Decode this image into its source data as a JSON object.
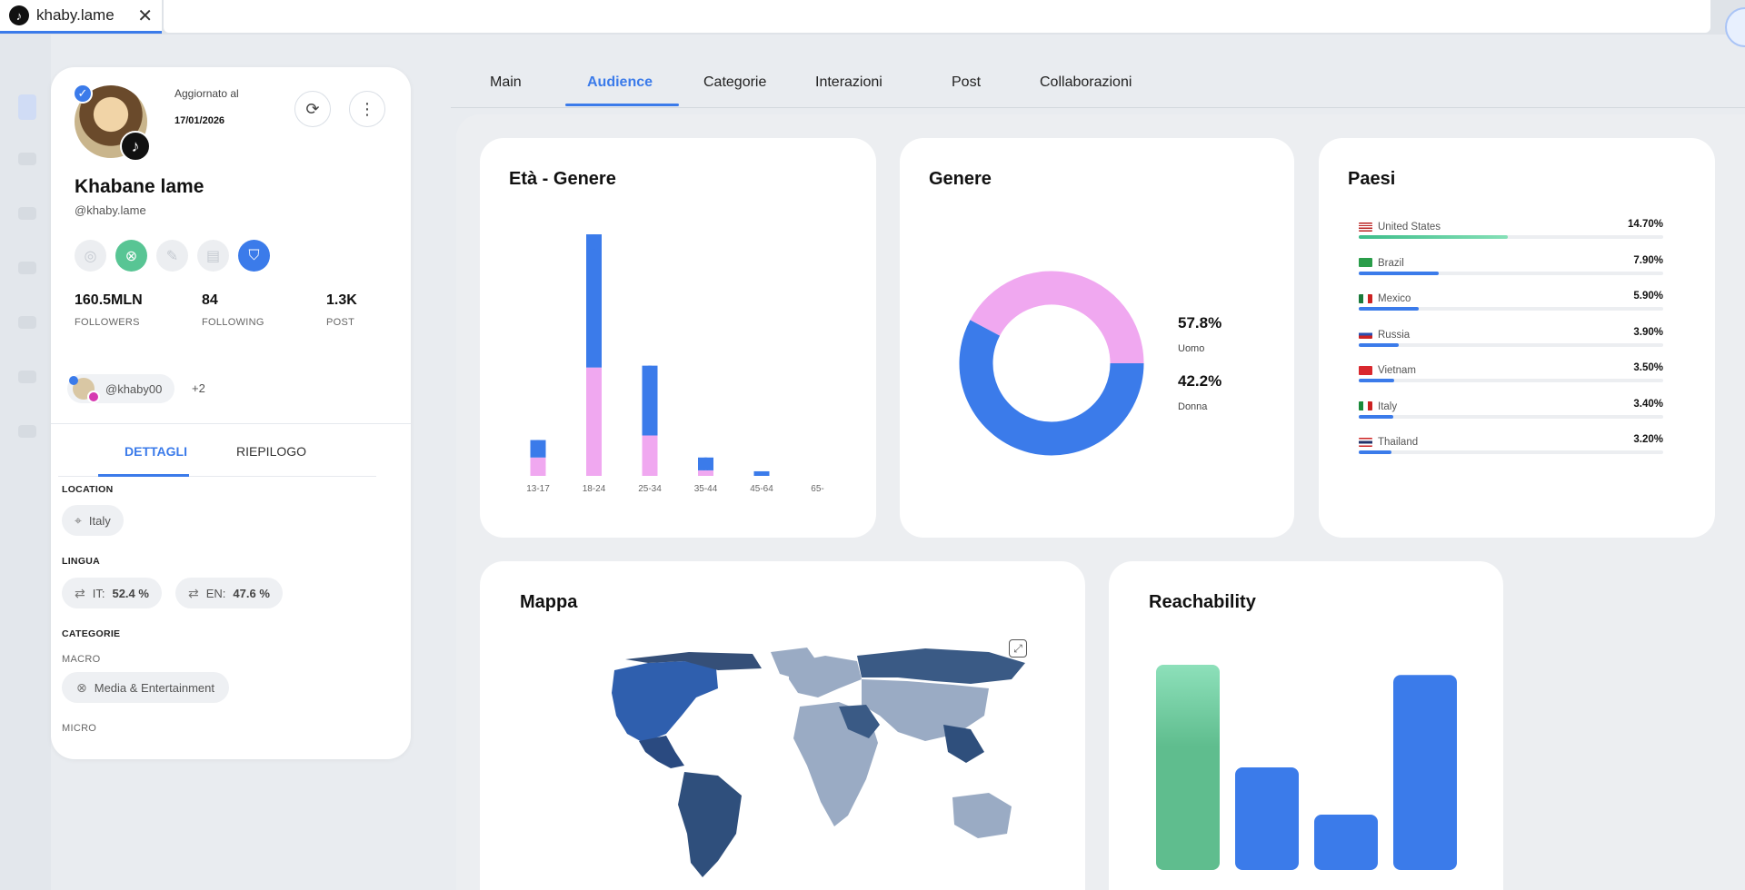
{
  "browser": {
    "tab_title": "khaby.lame",
    "favicon": "tiktok-icon",
    "close_icon": "close-icon"
  },
  "profile": {
    "updated_label": "Aggiornato al",
    "updated_date": "17/01/2026",
    "name": "Khabane lame",
    "handle": "@khaby.lame",
    "stats": [
      {
        "value": "160.5MLN",
        "label": "FOLLOWERS"
      },
      {
        "value": "84",
        "label": "FOLLOWING"
      },
      {
        "value": "1.3K",
        "label": "POST"
      }
    ],
    "linked_account": "@khaby00",
    "linked_more": "+2",
    "subtabs": [
      "DETTAGLI",
      "RIEPILOGO"
    ],
    "location_title": "LOCATION",
    "location_value": "Italy",
    "lingua_title": "LINGUA",
    "languages": [
      {
        "code": "IT:",
        "pct": "52.4 %"
      },
      {
        "code": "EN:",
        "pct": "47.6 %"
      }
    ],
    "categorie_title": "CATEGORIE",
    "macro_label": "MACRO",
    "macro_value": "Media & Entertainment",
    "micro_label": "MICRO"
  },
  "tabs": [
    "Main",
    "Audience",
    "Categorie",
    "Interazioni",
    "Post",
    "Collaborazioni"
  ],
  "active_tab": "Audience",
  "cards": {
    "eta_genere_title": "Età - Genere",
    "genere_title": "Genere",
    "paesi_title": "Paesi",
    "mappa_title": "Mappa",
    "reach_title": "Reachability"
  },
  "colors": {
    "male": "#3b7bea",
    "female": "#f0a8f0",
    "accent": "#3b7bea",
    "green": "#5fbd8e"
  },
  "chart_data": [
    {
      "type": "bar",
      "title": "Età - Genere",
      "categories": [
        "13-17",
        "18-24",
        "25-34",
        "35-44",
        "45-64",
        "65-"
      ],
      "series": [
        {
          "values": [
            1.9,
            14.5,
            7.6,
            1.4,
            0.5,
            0.0
          ]
        },
        {
          "values": [
            2.0,
            11.8,
            4.4,
            0.6,
            0.0,
            0.0
          ]
        }
      ]
    },
    {
      "type": "pie",
      "title": "Genere",
      "labels": [
        "Uomo",
        "Donna"
      ],
      "values": [
        57.8,
        42.2
      ],
      "display": [
        "57.8%",
        "42.2%"
      ]
    },
    {
      "type": "bar",
      "title": "Paesi",
      "categories": [
        "United States",
        "Brazil",
        "Mexico",
        "Russia",
        "Vietnam",
        "Italy",
        "Thailand"
      ],
      "values": [
        14.7,
        7.9,
        5.9,
        3.9,
        3.5,
        3.4,
        3.2
      ],
      "display": [
        "14.70%",
        "7.90%",
        "5.90%",
        "3.90%",
        "3.50%",
        "3.40%",
        "3.20%"
      ],
      "xlim": [
        0,
        100
      ]
    },
    {
      "type": "bar",
      "title": "Reachability",
      "values": [
        100,
        50,
        27,
        95
      ]
    }
  ]
}
